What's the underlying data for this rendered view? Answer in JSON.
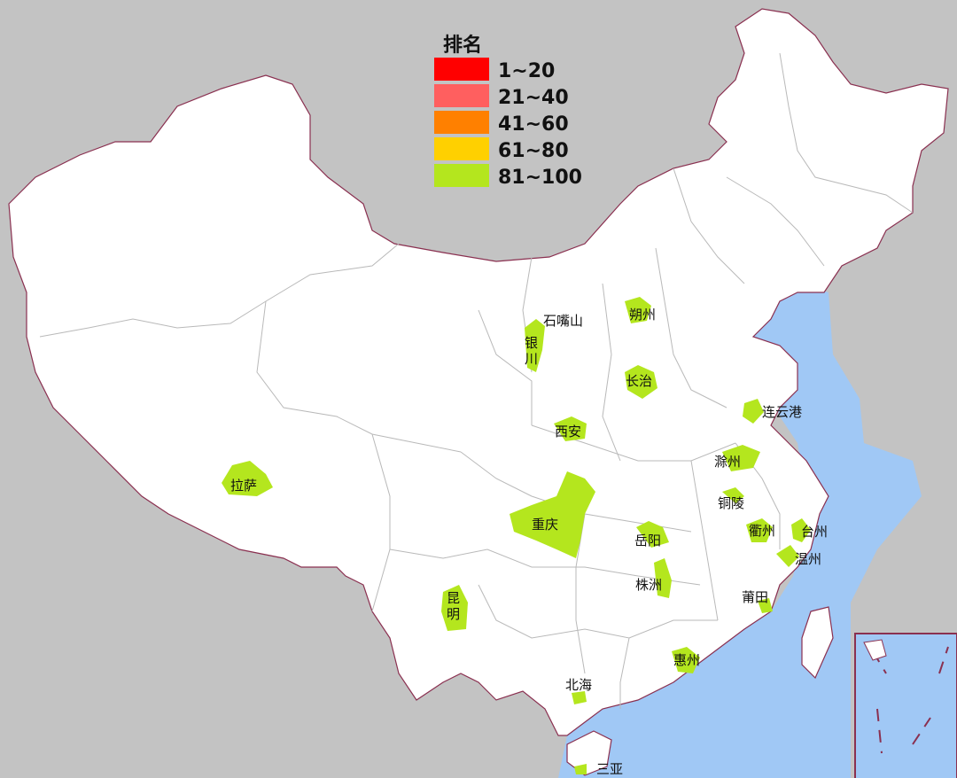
{
  "legend": {
    "title": "排名",
    "items": [
      {
        "label": "1~20",
        "color": "#ff0000"
      },
      {
        "label": "21~40",
        "color": "#ff5f5f"
      },
      {
        "label": "41~60",
        "color": "#ff8000"
      },
      {
        "label": "61~80",
        "color": "#ffd000"
      },
      {
        "label": "81~100",
        "color": "#b4e61e"
      }
    ]
  },
  "colors": {
    "background": "#c3c3c3",
    "land": "#ffffff",
    "sea": "#a0c8f5",
    "highlight": "#b4e61e",
    "border": "#8a3050"
  },
  "cities": [
    {
      "id": "shizuishan",
      "name": "石嘴山"
    },
    {
      "id": "yinchuan",
      "name": "银\n川"
    },
    {
      "id": "shuozhou",
      "name": "朔州"
    },
    {
      "id": "changzhi",
      "name": "长治"
    },
    {
      "id": "lianyungang",
      "name": "连云港"
    },
    {
      "id": "xian",
      "name": "西安"
    },
    {
      "id": "chuzhou",
      "name": "滁州"
    },
    {
      "id": "lasa",
      "name": "拉萨"
    },
    {
      "id": "tongling",
      "name": "铜陵"
    },
    {
      "id": "chongqing",
      "name": "重庆"
    },
    {
      "id": "yueyang",
      "name": "岳阳"
    },
    {
      "id": "quzhou",
      "name": "衢州"
    },
    {
      "id": "taizhou",
      "name": "台州"
    },
    {
      "id": "wenzhou",
      "name": "温州"
    },
    {
      "id": "zhuzhou",
      "name": "株洲"
    },
    {
      "id": "putian",
      "name": "莆田"
    },
    {
      "id": "kunming",
      "name": "昆\n明"
    },
    {
      "id": "huizhou",
      "name": "惠州"
    },
    {
      "id": "beihai",
      "name": "北海"
    },
    {
      "id": "sanya",
      "name": "三亚"
    }
  ]
}
